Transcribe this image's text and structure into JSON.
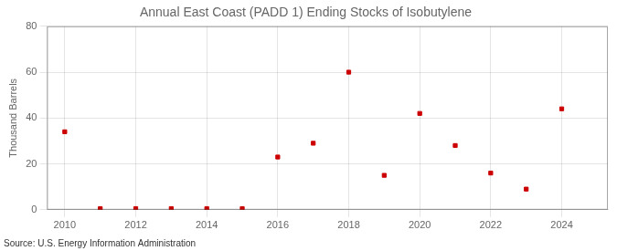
{
  "chart_data": {
    "type": "scatter",
    "title": "Annual East Coast (PADD 1) Ending Stocks of Isobutylene",
    "ylabel": "Thousand Barrels",
    "annotation": "Source: U.S. Energy Information Administration",
    "x": [
      2010,
      2011,
      2012,
      2013,
      2014,
      2015,
      2016,
      2017,
      2018,
      2019,
      2020,
      2021,
      2022,
      2023,
      2024
    ],
    "values": [
      34,
      0.5,
      0.5,
      0.5,
      0.5,
      0.5,
      23,
      29,
      60,
      15,
      42,
      28,
      16,
      9,
      44
    ],
    "color": "#cc0000",
    "marker": "square",
    "xlim": [
      2009.5,
      2025.3
    ],
    "xticks": [
      2010,
      2012,
      2014,
      2016,
      2018,
      2020,
      2022,
      2024
    ],
    "ylim": [
      0,
      80
    ],
    "yticks": [
      0,
      20,
      40,
      60,
      80
    ],
    "grid": true
  }
}
